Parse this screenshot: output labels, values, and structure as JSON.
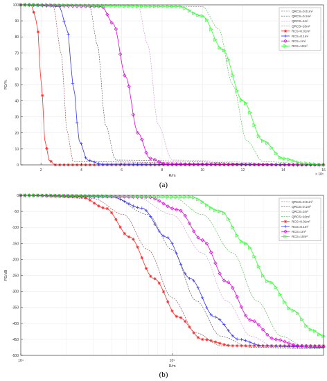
{
  "figure": {
    "panel_a_label": "(a)",
    "panel_b_label": "(b)"
  },
  "chart_data": [
    {
      "type": "line",
      "panel": "a",
      "xlabel": "R/m",
      "ylabel": "PD/%",
      "x_multiplier": "× 10⁵",
      "xlim": [
        1,
        16
      ],
      "ylim": [
        0,
        100
      ],
      "x_ticks": [
        2,
        4,
        6,
        8,
        10,
        12,
        14,
        16
      ],
      "x_tick_labels": [
        "2",
        "4",
        "6",
        "8",
        "10",
        "12",
        "14",
        "16"
      ],
      "y_ticks": [
        0,
        10,
        20,
        30,
        40,
        50,
        60,
        70,
        80,
        90,
        100
      ],
      "y_tick_labels": [
        "0",
        "10",
        "20",
        "30",
        "40",
        "50",
        "60",
        "70",
        "80",
        "90",
        "100"
      ],
      "grid": true,
      "legend": "top-right",
      "series": [
        {
          "name": "QRCS=0.01m²",
          "kind": "QRCS",
          "color": "#8b3a3a",
          "x": [
            1,
            2.6,
            3.0,
            3.3,
            3.6,
            16
          ],
          "y": [
            100,
            100,
            70,
            20,
            2,
            0
          ]
        },
        {
          "name": "QRCS=0.1m²",
          "kind": "QRCS",
          "color": "#444444",
          "x": [
            1,
            4.4,
            4.8,
            5.2,
            5.7,
            16
          ],
          "y": [
            100,
            100,
            75,
            25,
            3,
            0
          ]
        },
        {
          "name": "QRCS=1m²",
          "kind": "QRCS",
          "color": "#d08ad0",
          "x": [
            1,
            6.8,
            7.3,
            7.8,
            8.5,
            16
          ],
          "y": [
            100,
            100,
            75,
            25,
            3,
            0
          ]
        },
        {
          "name": "QRCS=10m²",
          "kind": "QRCS",
          "color": "#3db83d",
          "x": [
            1,
            10.0,
            10.8,
            11.5,
            12.2,
            13.0,
            16
          ],
          "y": [
            100,
            99,
            85,
            50,
            15,
            2,
            0
          ]
        },
        {
          "name": "RCS=0.01m²",
          "kind": "RCS",
          "color": "#ff2a2a",
          "marker": "*",
          "x": [
            1,
            1.5,
            1.8,
            2.0,
            2.2,
            2.4,
            2.7,
            16
          ],
          "y": [
            100,
            100,
            90,
            55,
            15,
            3,
            0,
            0
          ]
        },
        {
          "name": "RCS=0.1m²",
          "kind": "RCS",
          "color": "#3333ff",
          "marker": "+",
          "x": [
            1,
            2.9,
            3.3,
            3.6,
            3.9,
            4.3,
            5.0,
            16
          ],
          "y": [
            100,
            99,
            85,
            50,
            15,
            3,
            0.5,
            0
          ]
        },
        {
          "name": "RCS=1m²",
          "kind": "RCS",
          "color": "#e000e0",
          "marker": "◇",
          "x": [
            1,
            5.0,
            5.6,
            6.2,
            6.8,
            7.4,
            8.2,
            16
          ],
          "y": [
            100,
            99,
            88,
            55,
            20,
            4,
            0.5,
            0
          ]
        },
        {
          "name": "RCS=10m²",
          "kind": "RCS",
          "color": "#33ff33",
          "marker": "▷",
          "x": [
            1,
            8.8,
            10.0,
            11.0,
            12.0,
            13.0,
            14.0,
            15.0,
            16
          ],
          "y": [
            100,
            99,
            93,
            72,
            40,
            15,
            4,
            1,
            0
          ]
        }
      ]
    },
    {
      "type": "line",
      "panel": "b",
      "xlabel": "R/m",
      "ylabel": "PD/dB",
      "x_scale": "log",
      "xlim": [
        1,
        2
      ],
      "ylim": [
        -500,
        0
      ],
      "x_ticks": [
        1,
        1.5
      ],
      "x_tick_labels": [
        "10⁴",
        "10⁵"
      ],
      "y_ticks": [
        -500,
        -450,
        -400,
        -350,
        -300,
        -250,
        -200,
        -150,
        -100,
        -50,
        0
      ],
      "y_tick_labels": [
        "-500",
        "-450",
        "-400",
        "-350",
        "-300",
        "-250",
        "-200",
        "-150",
        "-100",
        "-50",
        "0"
      ],
      "grid": true,
      "legend": "top-right",
      "series": [
        {
          "name": "QRCS=0.01m²",
          "kind": "QRCS",
          "color": "#8b3a3a",
          "x": [
            1,
            1.24,
            1.34,
            1.42,
            1.5,
            1.58,
            1.66,
            2.0
          ],
          "y": [
            0,
            -10,
            -60,
            -170,
            -320,
            -430,
            -470,
            -475
          ]
        },
        {
          "name": "QRCS=0.1m²",
          "kind": "QRCS",
          "color": "#444444",
          "x": [
            1,
            1.3,
            1.42,
            1.5,
            1.58,
            1.66,
            1.76,
            2.0
          ],
          "y": [
            0,
            -5,
            -60,
            -170,
            -330,
            -440,
            -475,
            -480
          ]
        },
        {
          "name": "QRCS=1m²",
          "kind": "QRCS",
          "color": "#d08ad0",
          "x": [
            1,
            1.38,
            1.5,
            1.6,
            1.68,
            1.76,
            1.84,
            2.0
          ],
          "y": [
            0,
            -5,
            -60,
            -180,
            -330,
            -440,
            -475,
            -480
          ]
        },
        {
          "name": "QRCS=10m²",
          "kind": "QRCS",
          "color": "#3db83d",
          "x": [
            1,
            1.5,
            1.6,
            1.7,
            1.78,
            1.86,
            1.94,
            2.0
          ],
          "y": [
            0,
            -5,
            -60,
            -180,
            -330,
            -440,
            -475,
            -478
          ]
        },
        {
          "name": "RCS=0.01m²",
          "kind": "RCS",
          "color": "#ff2a2a",
          "marker": "*",
          "x": [
            1,
            1.2,
            1.28,
            1.36,
            1.44,
            1.52,
            1.6,
            1.7,
            2.0
          ],
          "y": [
            0,
            -5,
            -40,
            -130,
            -260,
            -380,
            -450,
            -470,
            -470
          ]
        },
        {
          "name": "RCS=0.1m²",
          "kind": "RCS",
          "color": "#3333ff",
          "marker": "+",
          "x": [
            1,
            1.3,
            1.4,
            1.48,
            1.56,
            1.64,
            1.72,
            1.8,
            2.0
          ],
          "y": [
            0,
            -5,
            -40,
            -130,
            -260,
            -380,
            -450,
            -470,
            -475
          ]
        },
        {
          "name": "RCS=1m²",
          "kind": "RCS",
          "color": "#e000e0",
          "marker": "◇",
          "x": [
            1,
            1.42,
            1.52,
            1.6,
            1.68,
            1.76,
            1.84,
            1.92,
            2.0
          ],
          "y": [
            0,
            -5,
            -45,
            -140,
            -270,
            -390,
            -450,
            -470,
            -472
          ]
        },
        {
          "name": "RCS=10m²",
          "kind": "RCS",
          "color": "#33ff33",
          "marker": "▷",
          "x": [
            1,
            1.56,
            1.66,
            1.74,
            1.82,
            1.9,
            1.96,
            2.0
          ],
          "y": [
            0,
            -5,
            -50,
            -150,
            -270,
            -360,
            -420,
            -440
          ]
        }
      ]
    }
  ]
}
